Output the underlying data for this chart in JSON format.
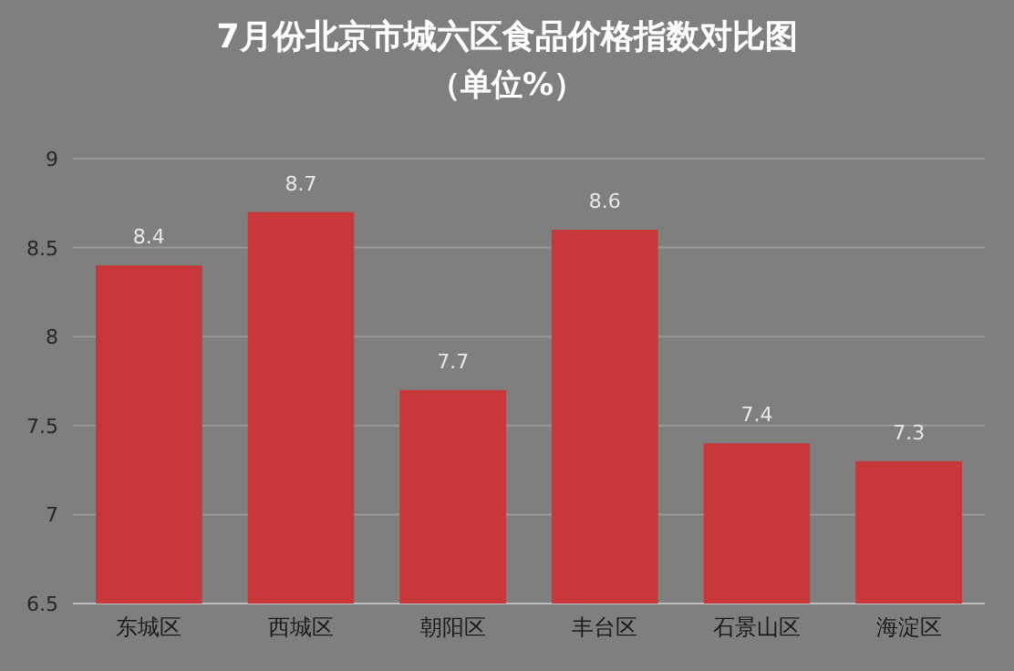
{
  "chart_data": {
    "type": "bar",
    "title": "7月份北京市城六区食品价格指数对比图",
    "subtitle": "（单位%）",
    "categories": [
      "东城区",
      "西城区",
      "朝阳区",
      "丰台区",
      "石景山区",
      "海淀区"
    ],
    "values": [
      8.4,
      8.7,
      7.7,
      8.6,
      7.4,
      7.3
    ],
    "color": "#c8383a",
    "ylim": [
      6.5,
      9
    ],
    "yticks": [
      6.5,
      7,
      7.5,
      8,
      8.5,
      9
    ],
    "grid": "y",
    "data_labels": true
  }
}
